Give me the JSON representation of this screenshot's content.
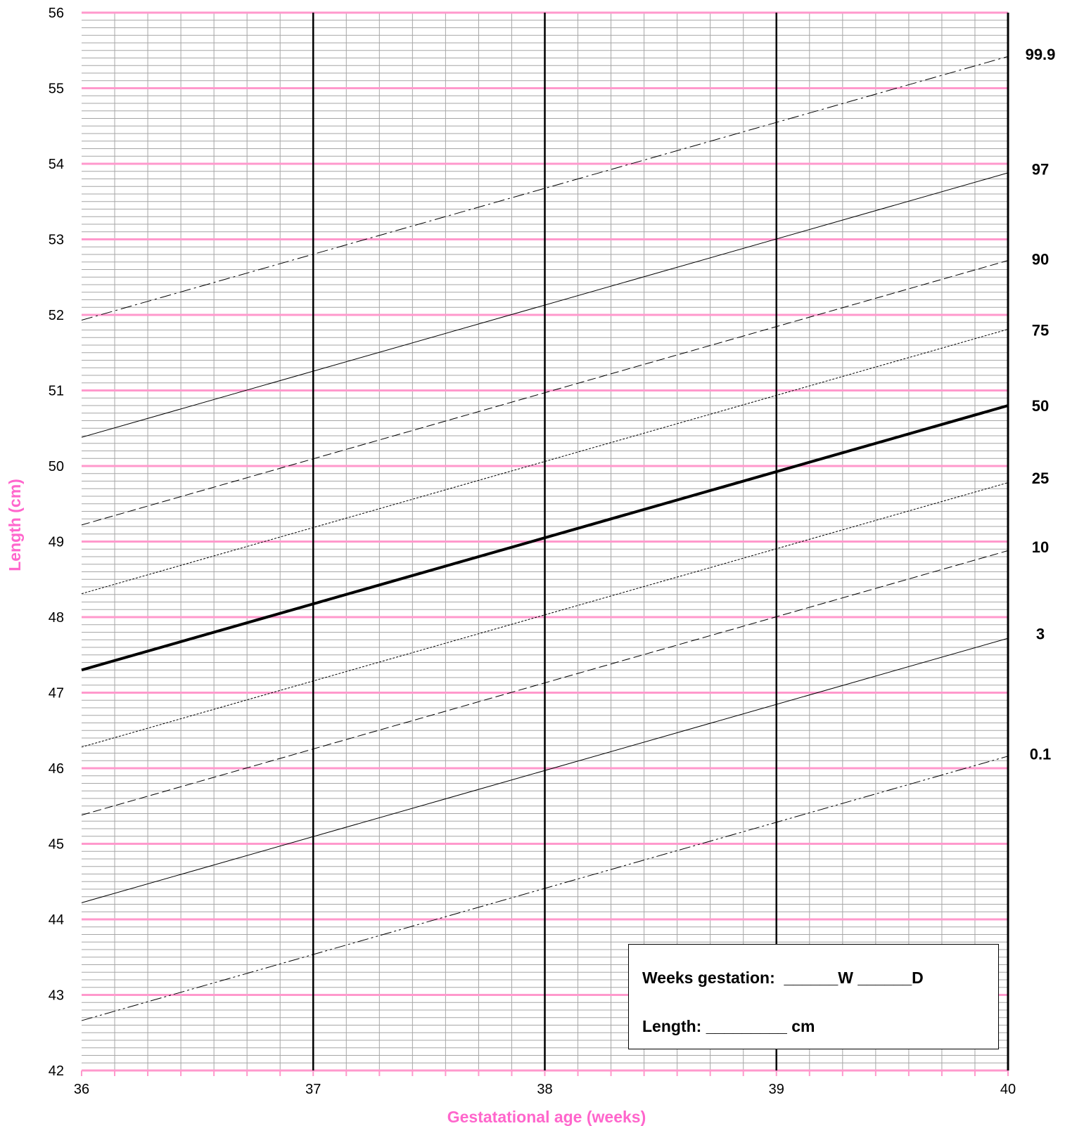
{
  "chart_data": {
    "type": "line",
    "xlabel": "Gestatational age (weeks)",
    "ylabel": "Length (cm)",
    "xlim": [
      36,
      40
    ],
    "ylim": [
      42,
      56
    ],
    "xticks": [
      "36",
      "37",
      "38",
      "39",
      "40"
    ],
    "yticks": [
      "42",
      "43",
      "44",
      "45",
      "46",
      "47",
      "48",
      "49",
      "50",
      "51",
      "52",
      "53",
      "54",
      "55",
      "56"
    ],
    "grid": true,
    "x": [
      36,
      40
    ],
    "series": [
      {
        "name": "99.9",
        "values": [
          51.93,
          55.42
        ],
        "style": "dashdot",
        "weight": 1
      },
      {
        "name": "97",
        "values": [
          50.38,
          53.88
        ],
        "style": "solid",
        "weight": 1
      },
      {
        "name": "90",
        "values": [
          49.22,
          52.72
        ],
        "style": "dashed",
        "weight": 1
      },
      {
        "name": "75",
        "values": [
          48.31,
          51.81
        ],
        "style": "dotted",
        "weight": 1
      },
      {
        "name": "50",
        "values": [
          47.3,
          50.8
        ],
        "style": "solid",
        "weight": 4
      },
      {
        "name": "25",
        "values": [
          46.28,
          49.78
        ],
        "style": "dotted",
        "weight": 1
      },
      {
        "name": "10",
        "values": [
          45.38,
          48.88
        ],
        "style": "dashed",
        "weight": 1
      },
      {
        "name": "3",
        "values": [
          44.22,
          47.72
        ],
        "style": "solid",
        "weight": 1
      },
      {
        "name": "0.1",
        "values": [
          42.66,
          46.16
        ],
        "style": "dashdotdot",
        "weight": 1
      }
    ],
    "percentile_labels": [
      {
        "text": "99.9",
        "y": 55.45
      },
      {
        "text": "97",
        "y": 53.93
      },
      {
        "text": "90",
        "y": 52.74
      },
      {
        "text": "75",
        "y": 51.8
      },
      {
        "text": "50",
        "y": 50.8
      },
      {
        "text": "25",
        "y": 49.84
      },
      {
        "text": "10",
        "y": 48.93
      },
      {
        "text": "3",
        "y": 47.78
      },
      {
        "text": "0.1",
        "y": 46.19
      }
    ],
    "colors": {
      "major_grid": "#ff99cc",
      "minor_grid": "#a6a6a6",
      "week_lines": "#000000",
      "axis_title": "#ff66cc"
    }
  },
  "info_box": {
    "weeks_line": "Weeks gestation:  ______W ______D",
    "length_line": "Length: _________ cm"
  }
}
